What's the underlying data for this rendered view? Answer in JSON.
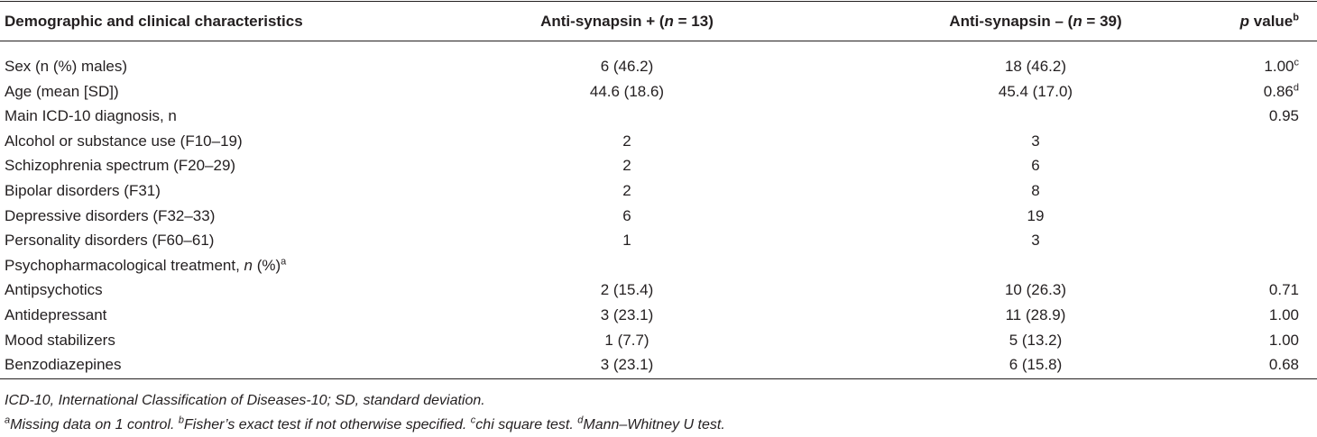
{
  "table": {
    "header": [
      "Demographic and clinical characteristics",
      [
        "Anti-synapsin + (",
        "n",
        " = 13)"
      ],
      [
        "Anti-synapsin – (",
        "n",
        " = 39)"
      ],
      [
        "p",
        " value",
        "b"
      ]
    ],
    "rows": [
      {
        "label": "Sex (n (%) males)",
        "plus": "6 (46.2)",
        "minus": "18 (46.2)",
        "p": [
          "1.00",
          "c"
        ]
      },
      {
        "label": "Age (mean [SD])",
        "plus": "44.6 (18.6)",
        "minus": "45.4 (17.0)",
        "p": [
          "0.86",
          "d"
        ]
      },
      {
        "label": "Main ICD-10 diagnosis, n",
        "p": [
          "0.95"
        ]
      },
      {
        "label": "Alcohol or substance use (F10–19)",
        "plus": 2,
        "minus": 3
      },
      {
        "label": "Schizophrenia spectrum (F20–29)",
        "plus": 2,
        "minus": 6
      },
      {
        "label": "Bipolar disorders (F31)",
        "plus": 2,
        "minus": 8
      },
      {
        "label": "Depressive disorders (F32–33)",
        "plus": 6,
        "minus": 19
      },
      {
        "label": "Personality disorders (F60–61)",
        "plus": 1,
        "minus": 3
      },
      {
        "label": [
          "Psychopharmacological treatment, ",
          "n",
          " (%)",
          "a"
        ]
      },
      {
        "label": "Antipsychotics",
        "plus": "2 (15.4)",
        "minus": "10 (26.3)",
        "p": [
          "0.71"
        ]
      },
      {
        "label": "Antidepressant",
        "plus": "3 (23.1)",
        "minus": "11 (28.9)",
        "p": [
          "1.00"
        ]
      },
      {
        "label": "Mood stabilizers",
        "plus": "1 (7.7)",
        "minus": "5 (13.2)",
        "p": [
          "1.00"
        ]
      },
      {
        "label": "Benzodiazepines",
        "plus": "3 (23.1)",
        "minus": "6 (15.8)",
        "p": [
          "0.68"
        ]
      }
    ],
    "footnotes": [
      "ICD-10, International Classification of Diseases-10; SD, standard deviation.",
      [
        "a",
        "Missing data on 1 control. ",
        "b",
        "Fisher’s exact test if not otherwise specified. ",
        "c",
        "chi square test. ",
        "d",
        "Mann–Whitney U test."
      ]
    ]
  }
}
